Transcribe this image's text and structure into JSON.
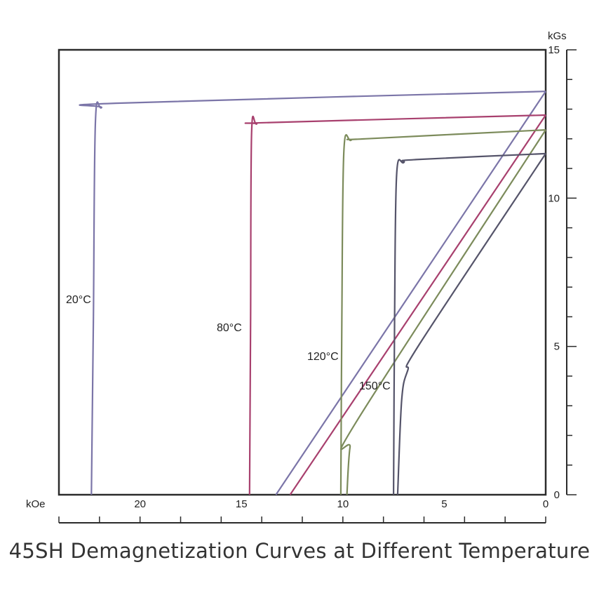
{
  "chart_data": {
    "type": "line",
    "title": "45SH Demagnetization Curves at Different Temperature",
    "x_unit": "kOe",
    "y_unit": "kGs",
    "xlim": [
      24,
      0
    ],
    "ylim": [
      0,
      15
    ],
    "x_ticks": [
      "0",
      "5",
      "10",
      "15",
      "20"
    ],
    "y_ticks": [
      "0",
      "5",
      "10",
      "15"
    ],
    "grid": false,
    "series": [
      {
        "name": "20°C",
        "color": "#7b75a8",
        "bh_curve": [
          [
            22.4,
            0
          ],
          [
            22.3,
            6
          ],
          [
            22.2,
            12.6
          ],
          [
            21.9,
            13.05
          ],
          [
            21.2,
            13.2
          ],
          [
            0,
            13.6
          ]
        ],
        "recoil_line": [
          [
            13.3,
            0
          ],
          [
            0,
            13.6
          ]
        ]
      },
      {
        "name": "80°C",
        "color": "#a8406e",
        "bh_curve": [
          [
            14.6,
            0
          ],
          [
            14.55,
            6
          ],
          [
            14.5,
            12.2
          ],
          [
            14.25,
            12.5
          ],
          [
            13.6,
            12.55
          ],
          [
            0,
            12.8
          ]
        ],
        "recoil_line": [
          [
            12.6,
            0
          ],
          [
            0,
            12.8
          ]
        ]
      },
      {
        "name": "120°C",
        "color": "#7c8b5b",
        "bh_curve": [
          [
            10.1,
            0
          ],
          [
            10.05,
            6
          ],
          [
            9.95,
            11.6
          ],
          [
            9.6,
            11.95
          ],
          [
            8.9,
            12.0
          ],
          [
            0,
            12.3
          ]
        ],
        "recoil_line": [
          [
            9.8,
            0
          ],
          [
            9.65,
            1.6
          ],
          [
            9.3,
            2.5
          ],
          [
            0,
            12.3
          ]
        ]
      },
      {
        "name": "150°C",
        "color": "#55546a",
        "bh_curve": [
          [
            7.5,
            0
          ],
          [
            7.45,
            6
          ],
          [
            7.35,
            10.8
          ],
          [
            7.0,
            11.2
          ],
          [
            6.4,
            11.3
          ],
          [
            0,
            11.5
          ]
        ],
        "recoil_line": [
          [
            7.3,
            0
          ],
          [
            7.1,
            3.2
          ],
          [
            6.8,
            4.2
          ],
          [
            6.2,
            5.1
          ],
          [
            0,
            11.5
          ]
        ]
      }
    ]
  }
}
